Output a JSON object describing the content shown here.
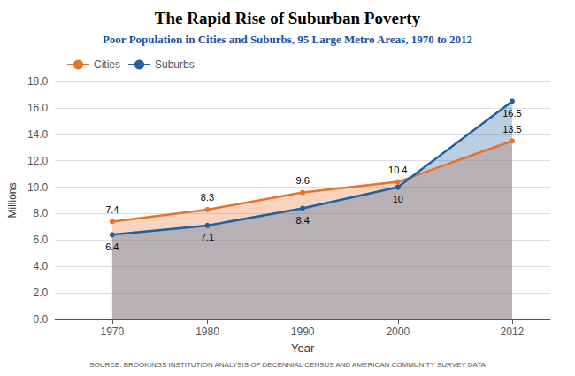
{
  "chart_data": {
    "type": "line",
    "title": "The Rapid Rise of Suburban Poverty",
    "subtitle": "Poor Population in Cities and Suburbs, 95 Large Metro Areas, 1970 to 2012",
    "source": "SOURCE: BROOKINGS INSTITUTION ANALYSIS OF DECENNIAL CENSUS AND AMERICAN COMMUNITY SURVEY DATA",
    "xlabel": "Year",
    "ylabel": "Millions",
    "x": [
      1970,
      1980,
      1990,
      2000,
      2012
    ],
    "series": [
      {
        "name": "Cities",
        "color": "#E8722A",
        "values": [
          7.4,
          8.3,
          9.6,
          10.4,
          13.5
        ]
      },
      {
        "name": "Suburbs",
        "color": "#2060A0",
        "values": [
          6.4,
          7.1,
          8.4,
          10.0,
          16.5
        ]
      }
    ],
    "xlim": [
      1964,
      2016
    ],
    "xticks": [
      1970,
      1980,
      1990,
      2000,
      2012
    ],
    "ylim": [
      0,
      18.0
    ],
    "yticks": [
      {
        "value": 0,
        "label": "0.0"
      },
      {
        "value": 2.0,
        "label": "2.0"
      },
      {
        "value": 4.0,
        "label": "4.0"
      },
      {
        "value": 6.0,
        "label": "6.0"
      },
      {
        "value": 8.0,
        "label": "8.0"
      },
      {
        "value": 10.0,
        "label": "10.0"
      },
      {
        "value": 12.0,
        "label": "12.0"
      },
      {
        "value": 14.0,
        "label": "14.0"
      },
      {
        "value": 16.0,
        "label": "16.0"
      },
      {
        "value": 18.0,
        "label": "18.0"
      }
    ],
    "grid": true,
    "legend": "upper left",
    "data_labels": true
  }
}
